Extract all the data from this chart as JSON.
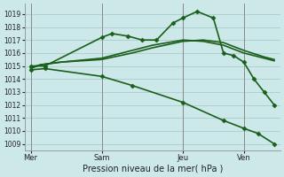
{
  "background_color": "#cce8e8",
  "grid_color": "#aacccc",
  "line_color": "#1a5e1a",
  "xlabel": "Pression niveau de la mer( hPa )",
  "ylim": [
    1008.5,
    1019.8
  ],
  "yticks": [
    1009,
    1010,
    1011,
    1012,
    1013,
    1014,
    1015,
    1016,
    1017,
    1018,
    1019
  ],
  "xlim": [
    -0.3,
    12.3
  ],
  "day_labels": [
    "Mer",
    "Sam",
    "Jeu",
    "Ven"
  ],
  "day_positions": [
    0,
    3.5,
    7.5,
    10.5
  ],
  "vlines": [
    0,
    3.5,
    7.5,
    10.5
  ],
  "series": [
    {
      "x": [
        0,
        0.5,
        1.5,
        3.5,
        5,
        6,
        7.5,
        8.5,
        9.5,
        10.5,
        11.5,
        12
      ],
      "y": [
        1014.8,
        1015.1,
        1015.3,
        1015.5,
        1016.0,
        1016.4,
        1016.9,
        1017.0,
        1016.8,
        1016.2,
        1015.7,
        1015.5
      ],
      "has_marker": false,
      "lw": 1.2
    },
    {
      "x": [
        0,
        0.5,
        1.5,
        3.5,
        5,
        6,
        7.5,
        8.5,
        9.5,
        10.5,
        11.5,
        12
      ],
      "y": [
        1014.9,
        1015.1,
        1015.3,
        1015.6,
        1016.2,
        1016.6,
        1017.0,
        1016.9,
        1016.6,
        1016.0,
        1015.6,
        1015.4
      ],
      "has_marker": false,
      "lw": 1.2
    },
    {
      "x": [
        0,
        0.7,
        3.5,
        4.0,
        4.8,
        5.5,
        6.2,
        7.0,
        7.5,
        8.2,
        9.0,
        9.5,
        10.0,
        10.5,
        11.0,
        11.5,
        12.0
      ],
      "y": [
        1015.0,
        1015.0,
        1017.2,
        1017.5,
        1017.3,
        1017.0,
        1017.0,
        1018.3,
        1018.7,
        1019.2,
        1018.7,
        1016.0,
        1015.8,
        1015.3,
        1014.0,
        1013.0,
        1012.0
      ],
      "has_marker": true,
      "lw": 1.2
    },
    {
      "x": [
        0,
        0.7,
        3.5,
        5.0,
        7.5,
        9.5,
        10.5,
        11.2,
        12.0
      ],
      "y": [
        1014.7,
        1014.8,
        1014.2,
        1013.5,
        1012.2,
        1010.8,
        1010.2,
        1009.8,
        1009.0
      ],
      "has_marker": true,
      "lw": 1.2
    }
  ]
}
